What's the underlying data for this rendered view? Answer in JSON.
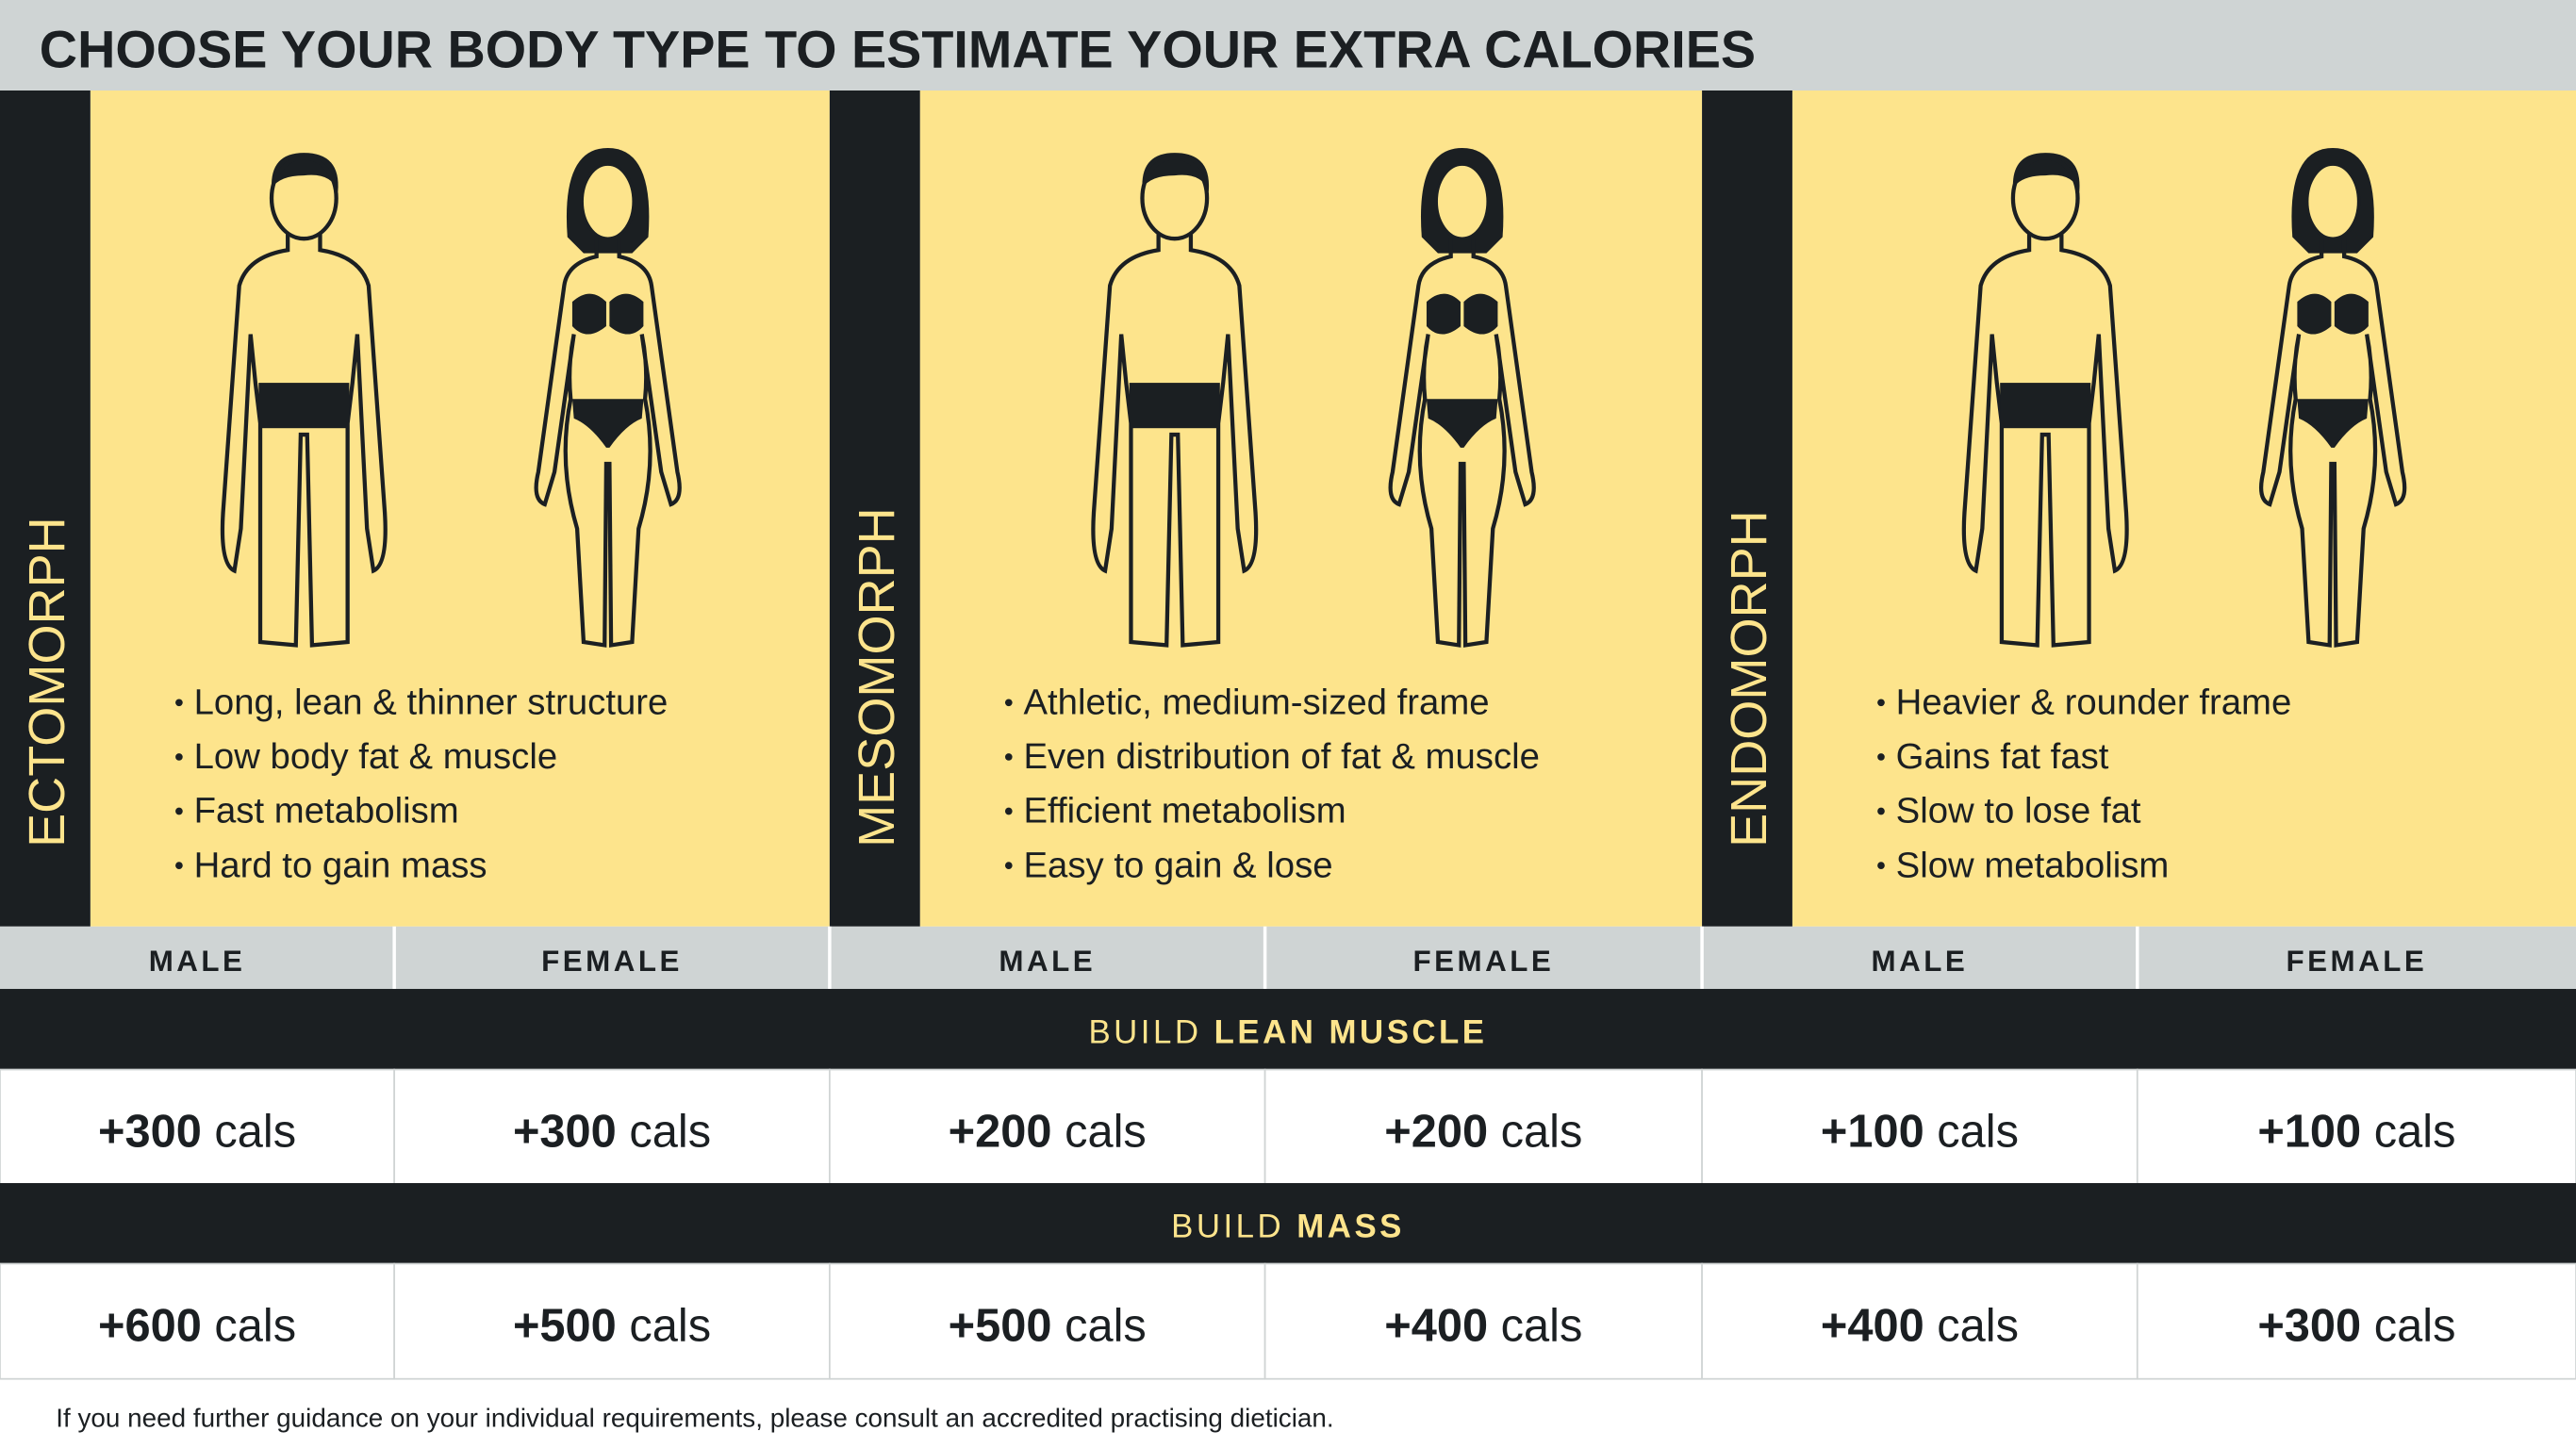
{
  "title": "CHOOSE YOUR BODY TYPE TO ESTIMATE YOUR EXTRA CALORIES",
  "body_types": [
    {
      "name": "ECTOMORPH",
      "bullets": [
        "Long, lean & thinner structure",
        "Low body fat & muscle",
        "Fast metabolism",
        "Hard to gain mass"
      ]
    },
    {
      "name": "MESOMORPH",
      "bullets": [
        "Athletic, medium-sized frame",
        "Even distribution of fat & muscle",
        "Efficient metabolism",
        "Easy to gain & lose"
      ]
    },
    {
      "name": "ENDOMORPH",
      "bullets": [
        "Heavier & rounder frame",
        "Gains fat fast",
        "Slow to lose fat",
        "Slow metabolism"
      ]
    }
  ],
  "table": {
    "columns": [
      "MALE",
      "FEMALE",
      "MALE",
      "FEMALE",
      "MALE",
      "FEMALE"
    ],
    "sections": [
      {
        "label": "BUILD",
        "label_bold": "LEAN MUSCLE",
        "cells": [
          {
            "amount": "+300",
            "unit": "cals"
          },
          {
            "amount": "+300",
            "unit": "cals"
          },
          {
            "amount": "+200",
            "unit": "cals"
          },
          {
            "amount": "+200",
            "unit": "cals"
          },
          {
            "amount": "+100",
            "unit": "cals"
          },
          {
            "amount": "+100",
            "unit": "cals"
          }
        ]
      },
      {
        "label": "BUILD",
        "label_bold": "MASS",
        "cells": [
          {
            "amount": "+600",
            "unit": "cals"
          },
          {
            "amount": "+500",
            "unit": "cals"
          },
          {
            "amount": "+500",
            "unit": "cals"
          },
          {
            "amount": "+400",
            "unit": "cals"
          },
          {
            "amount": "+400",
            "unit": "cals"
          },
          {
            "amount": "+300",
            "unit": "cals"
          }
        ]
      }
    ]
  },
  "footer": "If you need further guidance on your individual requirements, please consult an accredited practising dietician."
}
